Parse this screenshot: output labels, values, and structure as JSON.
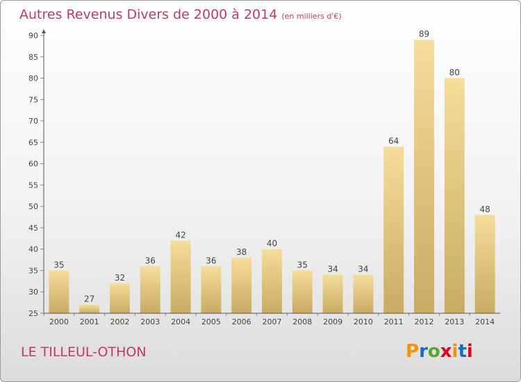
{
  "title": "Autres Revenus Divers de 2000 à 2014",
  "unit_note": "(en milliers d'€)",
  "place_name": "LE TILLEUL-OTHON",
  "logo": {
    "letters": [
      "P",
      "r",
      "o",
      "x",
      "i",
      "t",
      "i"
    ],
    "colors": [
      "#f29400",
      "#1a6fb8",
      "#5aa52c",
      "#e2001a",
      "#f29400",
      "#1a6fb8",
      "#e2001a"
    ]
  },
  "colors": {
    "title": "#c0386a",
    "bar_light": "#f5dd9a",
    "bar_dark": "#c9ab62",
    "axis": "#555555",
    "grid_tick": "#888888"
  },
  "chart_data": {
    "type": "bar",
    "title": "Autres Revenus Divers de 2000 à 2014",
    "subtitle": "(en milliers d'€)",
    "categories": [
      "2000",
      "2001",
      "2002",
      "2003",
      "2004",
      "2005",
      "2006",
      "2007",
      "2008",
      "2009",
      "2010",
      "2011",
      "2012",
      "2013",
      "2014"
    ],
    "values": [
      35,
      27,
      32,
      36,
      42,
      36,
      38,
      40,
      35,
      34,
      34,
      64,
      89,
      80,
      48
    ],
    "ylim": [
      25,
      90
    ],
    "yticks": [
      25,
      30,
      35,
      40,
      45,
      50,
      55,
      60,
      65,
      70,
      75,
      80,
      85,
      90
    ],
    "grid": false,
    "data_labels": true
  }
}
